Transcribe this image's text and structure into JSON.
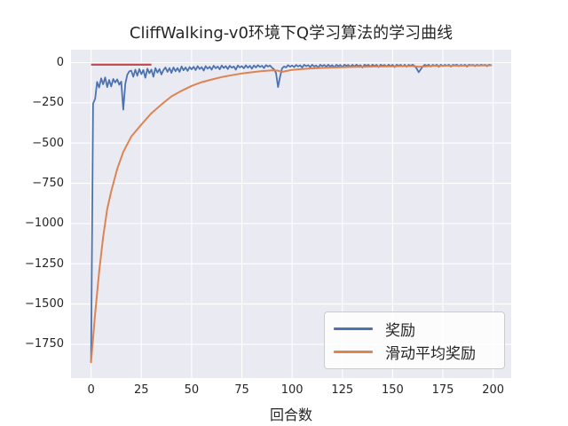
{
  "style": {
    "figure_bg": "#ffffff",
    "axes_bg": "#EAEAF2",
    "grid_color": "#ffffff",
    "text_color": "#262626",
    "legend_bg": "#ffffff",
    "legend_border": "#cccccc"
  },
  "chart_data": {
    "type": "line",
    "title": "CliffWalking-v0环境下Q学习算法的学习曲线",
    "xlabel": "回合数",
    "ylabel": "",
    "grid": true,
    "legend_position": "lower right",
    "xlim": [
      -10,
      209
    ],
    "ylim": [
      -1960,
      80
    ],
    "xtick_values": [
      0,
      25,
      50,
      75,
      100,
      125,
      150,
      175,
      200
    ],
    "xtick_labels": [
      "0",
      "25",
      "50",
      "75",
      "100",
      "125",
      "150",
      "175",
      "200"
    ],
    "ytick_values": [
      0,
      -250,
      -500,
      -750,
      -1000,
      -1250,
      -1500,
      -1750
    ],
    "ytick_labels": [
      "0",
      "−250",
      "−500",
      "−750",
      "−1000",
      "−1250",
      "−1500",
      "−1750"
    ],
    "series": [
      {
        "name": "奖励",
        "color": "#4C72B0",
        "line_width": 1.8,
        "x_start": 0,
        "x_step": 1,
        "values": [
          -1862,
          -255,
          -225,
          -120,
          -155,
          -98,
          -135,
          -92,
          -152,
          -108,
          -148,
          -102,
          -124,
          -104,
          -138,
          -118,
          -292,
          -132,
          -76,
          -54,
          -50,
          -88,
          -44,
          -82,
          -40,
          -72,
          -46,
          -94,
          -38,
          -66,
          -44,
          -88,
          -34,
          -62,
          -40,
          -74,
          -46,
          -30,
          -58,
          -34,
          -64,
          -30,
          -54,
          -34,
          -58,
          -24,
          -48,
          -30,
          -52,
          -28,
          -42,
          -26,
          -46,
          -22,
          -40,
          -28,
          -50,
          -22,
          -38,
          -26,
          -44,
          -20,
          -36,
          -24,
          -42,
          -18,
          -34,
          -22,
          -40,
          -20,
          -32,
          -24,
          -44,
          -18,
          -30,
          -22,
          -36,
          -17,
          -32,
          -20,
          -38,
          -18,
          -30,
          -16,
          -27,
          -20,
          -34,
          -16,
          -25,
          -18,
          -32,
          -42,
          -64,
          -152,
          -90,
          -36,
          -24,
          -30,
          -16,
          -26,
          -18,
          -28,
          -15,
          -24,
          -17,
          -30,
          -14,
          -22,
          -16,
          -28,
          -14,
          -24,
          -18,
          -32,
          -14,
          -22,
          -15,
          -26,
          -13,
          -24,
          -16,
          -30,
          -14,
          -22,
          -15,
          -28,
          -13,
          -20,
          -15,
          -26,
          -14,
          -24,
          -13,
          -22,
          -16,
          -30,
          -13,
          -20,
          -14,
          -26,
          -13,
          -22,
          -14,
          -28,
          -13,
          -20,
          -15,
          -24,
          -13,
          -22,
          -14,
          -28,
          -13,
          -20,
          -14,
          -24,
          -13,
          -26,
          -14,
          -20,
          -13,
          -22,
          -38,
          -60,
          -42,
          -24,
          -14,
          -20,
          -13,
          -24,
          -14,
          -20,
          -13,
          -26,
          -13,
          -22,
          -14,
          -20,
          -13,
          -24,
          -14,
          -17,
          -13,
          -22,
          -14,
          -20,
          -13,
          -24,
          -13,
          -17,
          -14,
          -22,
          -13,
          -20,
          -13,
          -17,
          -14,
          -22,
          -13,
          -16
        ]
      },
      {
        "name": "滑动平均奖励",
        "color": "#DD8452",
        "line_width": 2,
        "points": [
          [
            0,
            -1862
          ],
          [
            2,
            -1560
          ],
          [
            4,
            -1300
          ],
          [
            6,
            -1085
          ],
          [
            8,
            -910
          ],
          [
            10,
            -800
          ],
          [
            13,
            -660
          ],
          [
            16,
            -555
          ],
          [
            20,
            -460
          ],
          [
            25,
            -385
          ],
          [
            30,
            -315
          ],
          [
            35,
            -260
          ],
          [
            40,
            -210
          ],
          [
            45,
            -175
          ],
          [
            50,
            -145
          ],
          [
            55,
            -122
          ],
          [
            60,
            -105
          ],
          [
            65,
            -90
          ],
          [
            70,
            -78
          ],
          [
            75,
            -68
          ],
          [
            80,
            -60
          ],
          [
            85,
            -53
          ],
          [
            90,
            -48
          ],
          [
            93,
            -50
          ],
          [
            95,
            -58
          ],
          [
            98,
            -50
          ],
          [
            100,
            -45
          ],
          [
            105,
            -40
          ],
          [
            110,
            -36
          ],
          [
            115,
            -33
          ],
          [
            120,
            -31
          ],
          [
            125,
            -29
          ],
          [
            130,
            -27
          ],
          [
            135,
            -26
          ],
          [
            140,
            -25
          ],
          [
            145,
            -24
          ],
          [
            150,
            -23
          ],
          [
            155,
            -22
          ],
          [
            160,
            -22
          ],
          [
            163,
            -26
          ],
          [
            166,
            -24
          ],
          [
            170,
            -21
          ],
          [
            175,
            -20
          ],
          [
            180,
            -19
          ],
          [
            185,
            -19
          ],
          [
            190,
            -18
          ],
          [
            195,
            -18
          ],
          [
            199,
            -17
          ]
        ]
      }
    ],
    "reference_line": {
      "color": "#C44E52",
      "line_width": 2.2,
      "x": [
        0,
        30
      ],
      "y": -13
    }
  }
}
